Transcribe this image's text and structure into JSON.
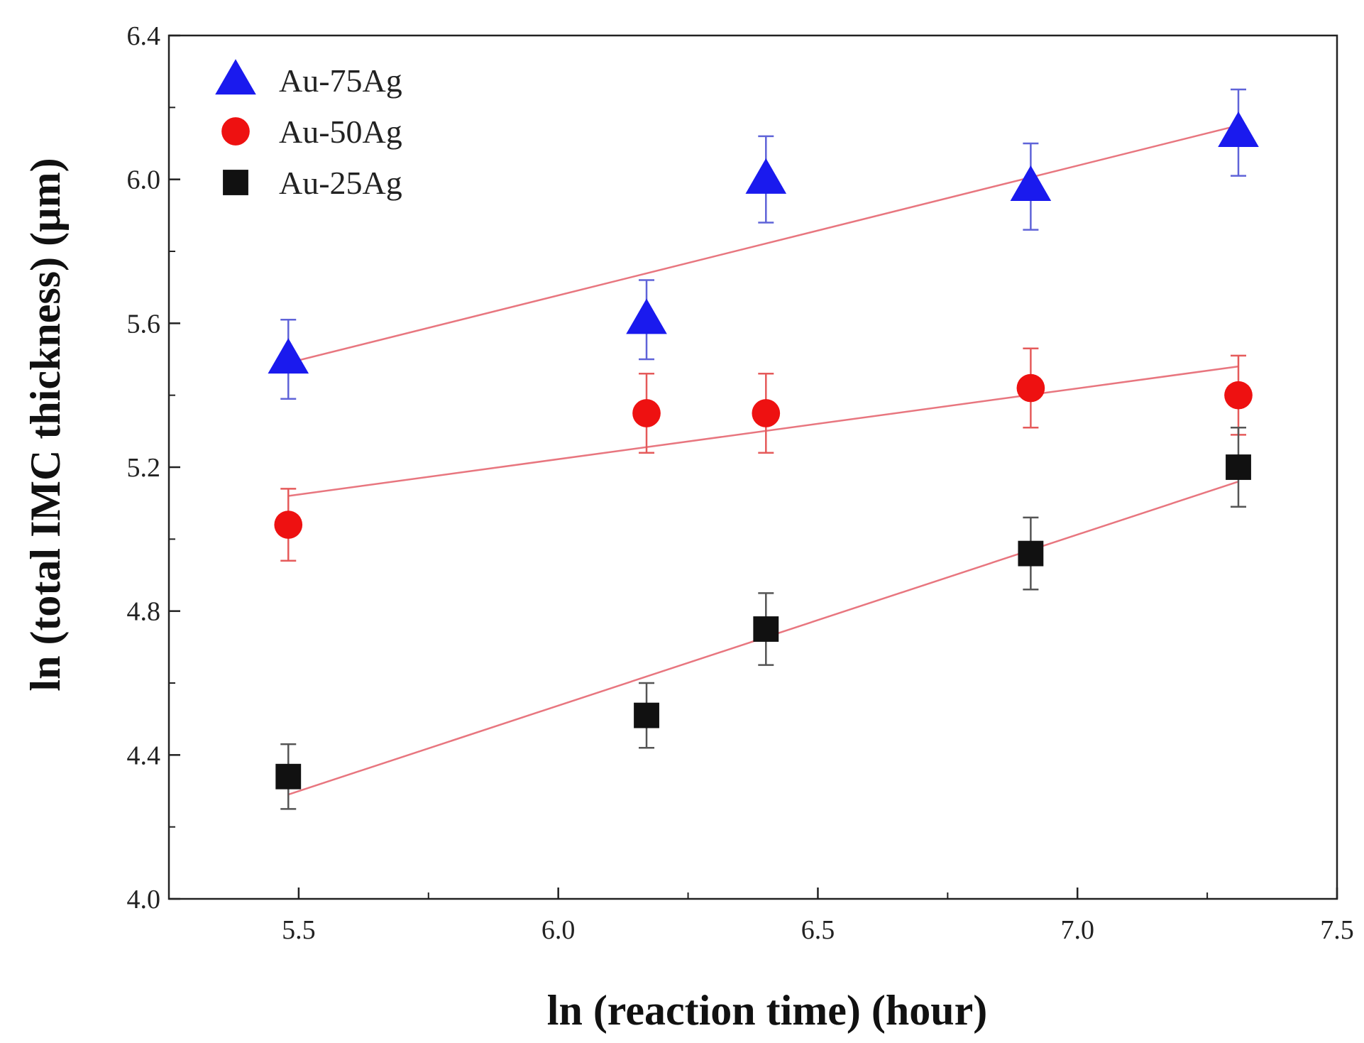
{
  "chart_data": {
    "type": "scatter",
    "title": "",
    "xlabel": "ln (reaction time) (hour)",
    "ylabel": "ln (total IMC thickness) (µm)",
    "xlim": [
      5.25,
      7.5
    ],
    "ylim": [
      4.0,
      6.4
    ],
    "xticks": [
      5.5,
      6.0,
      6.5,
      7.0,
      7.5
    ],
    "xtick_labels": [
      "5.5",
      "6.0",
      "6.5",
      "7.0",
      "7.5"
    ],
    "yticks": [
      4.0,
      4.4,
      4.8,
      5.2,
      5.6,
      6.0,
      6.4
    ],
    "ytick_labels": [
      "4.0",
      "4.4",
      "4.8",
      "5.2",
      "5.6",
      "6.0",
      "6.4"
    ],
    "grid": false,
    "legend_position": "top-left",
    "fit_line_color": "#e8767f",
    "series": [
      {
        "name": "Au-75Ag",
        "marker": "triangle",
        "color": "#1a1aee",
        "errorbar_color": "#5f63d8",
        "x": [
          5.48,
          6.17,
          6.4,
          6.91,
          7.31
        ],
        "y": [
          5.5,
          5.61,
          6.0,
          5.98,
          6.13
        ],
        "yerr": [
          0.11,
          0.11,
          0.12,
          0.12,
          0.12
        ],
        "fit": {
          "x": [
            5.48,
            7.31
          ],
          "y": [
            5.49,
            6.15
          ]
        }
      },
      {
        "name": "Au-50Ag",
        "marker": "circle",
        "color": "#ee1111",
        "errorbar_color": "#e55a5a",
        "x": [
          5.48,
          6.17,
          6.4,
          6.91,
          7.31
        ],
        "y": [
          5.04,
          5.35,
          5.35,
          5.42,
          5.4
        ],
        "yerr": [
          0.1,
          0.11,
          0.11,
          0.11,
          0.11
        ],
        "fit": {
          "x": [
            5.48,
            7.31
          ],
          "y": [
            5.12,
            5.48
          ]
        }
      },
      {
        "name": "Au-25Ag",
        "marker": "square",
        "color": "#111111",
        "errorbar_color": "#555555",
        "x": [
          5.48,
          6.17,
          6.4,
          6.91,
          7.31
        ],
        "y": [
          4.34,
          4.51,
          4.75,
          4.96,
          5.2
        ],
        "yerr": [
          0.09,
          0.09,
          0.1,
          0.1,
          0.11
        ],
        "fit": {
          "x": [
            5.48,
            7.31
          ],
          "y": [
            4.29,
            5.16
          ]
        }
      }
    ]
  }
}
